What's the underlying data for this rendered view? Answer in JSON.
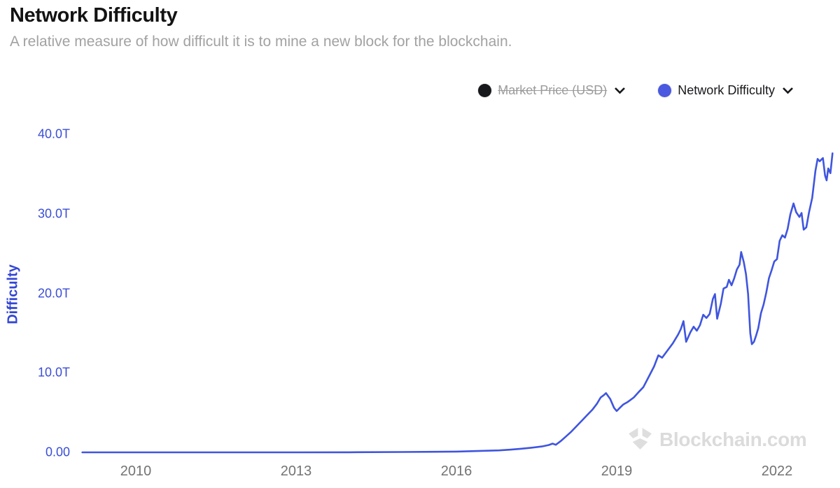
{
  "header": {
    "title": "Network Difficulty",
    "subtitle": "A relative measure of how difficult it is to mine a new block for the blockchain."
  },
  "legend": {
    "items": [
      {
        "label": "Market Price (USD)",
        "color": "#17181b",
        "enabled": false
      },
      {
        "label": "Network Difficulty",
        "color": "#4a59e0",
        "enabled": true
      }
    ]
  },
  "watermark": {
    "text": "Blockchain.com"
  },
  "chart_data": {
    "type": "line",
    "title": "Network Difficulty",
    "xlabel": "",
    "ylabel": "Difficulty",
    "unit": "T = trillions (difficulty)",
    "grid": false,
    "legend_position": "top-right",
    "line_color": "#3f55df",
    "axis_label_color": "#3a4ed6",
    "x_ticks": [
      "2010",
      "2013",
      "2016",
      "2019",
      "2022"
    ],
    "y_ticks": [
      "40.0T",
      "30.0T",
      "20.0T",
      "10.0T",
      "0.00"
    ],
    "xlim": [
      2009,
      2023.1
    ],
    "ylim": [
      0,
      40
    ],
    "series": [
      {
        "name": "Network Difficulty",
        "points": [
          [
            2009.0,
            0.0
          ],
          [
            2010.0,
            0.0
          ],
          [
            2011.0,
            0.0
          ],
          [
            2012.0,
            0.0
          ],
          [
            2013.0,
            0.0
          ],
          [
            2014.0,
            0.01
          ],
          [
            2015.0,
            0.045
          ],
          [
            2015.6,
            0.07
          ],
          [
            2016.0,
            0.1
          ],
          [
            2016.4,
            0.17
          ],
          [
            2016.8,
            0.25
          ],
          [
            2017.0,
            0.33
          ],
          [
            2017.2,
            0.45
          ],
          [
            2017.4,
            0.58
          ],
          [
            2017.6,
            0.74
          ],
          [
            2017.73,
            0.92
          ],
          [
            2017.8,
            1.1
          ],
          [
            2017.86,
            0.95
          ],
          [
            2017.95,
            1.4
          ],
          [
            2018.05,
            2.0
          ],
          [
            2018.15,
            2.6
          ],
          [
            2018.25,
            3.3
          ],
          [
            2018.35,
            4.0
          ],
          [
            2018.45,
            4.7
          ],
          [
            2018.55,
            5.4
          ],
          [
            2018.63,
            6.1
          ],
          [
            2018.7,
            6.9
          ],
          [
            2018.76,
            7.2
          ],
          [
            2018.8,
            7.45
          ],
          [
            2018.88,
            6.7
          ],
          [
            2018.95,
            5.6
          ],
          [
            2019.0,
            5.2
          ],
          [
            2019.06,
            5.6
          ],
          [
            2019.12,
            6.0
          ],
          [
            2019.2,
            6.3
          ],
          [
            2019.26,
            6.6
          ],
          [
            2019.32,
            6.9
          ],
          [
            2019.4,
            7.5
          ],
          [
            2019.5,
            8.2
          ],
          [
            2019.6,
            9.5
          ],
          [
            2019.7,
            10.8
          ],
          [
            2019.78,
            12.2
          ],
          [
            2019.85,
            11.9
          ],
          [
            2019.95,
            12.8
          ],
          [
            2020.05,
            13.7
          ],
          [
            2020.15,
            14.8
          ],
          [
            2020.2,
            15.5
          ],
          [
            2020.25,
            16.5
          ],
          [
            2020.3,
            13.9
          ],
          [
            2020.38,
            15.1
          ],
          [
            2020.44,
            15.8
          ],
          [
            2020.5,
            15.3
          ],
          [
            2020.56,
            16.0
          ],
          [
            2020.62,
            17.3
          ],
          [
            2020.68,
            16.9
          ],
          [
            2020.74,
            17.4
          ],
          [
            2020.8,
            19.3
          ],
          [
            2020.84,
            19.9
          ],
          [
            2020.88,
            16.8
          ],
          [
            2020.95,
            18.7
          ],
          [
            2021.0,
            20.6
          ],
          [
            2021.06,
            20.8
          ],
          [
            2021.1,
            21.7
          ],
          [
            2021.15,
            21.0
          ],
          [
            2021.2,
            21.9
          ],
          [
            2021.25,
            23.0
          ],
          [
            2021.3,
            23.6
          ],
          [
            2021.33,
            25.2
          ],
          [
            2021.38,
            23.9
          ],
          [
            2021.42,
            22.4
          ],
          [
            2021.46,
            19.9
          ],
          [
            2021.5,
            15.0
          ],
          [
            2021.53,
            13.6
          ],
          [
            2021.57,
            13.9
          ],
          [
            2021.61,
            14.7
          ],
          [
            2021.65,
            15.6
          ],
          [
            2021.7,
            17.5
          ],
          [
            2021.75,
            18.6
          ],
          [
            2021.8,
            20.1
          ],
          [
            2021.85,
            21.9
          ],
          [
            2021.9,
            22.9
          ],
          [
            2021.95,
            24.0
          ],
          [
            2022.0,
            24.3
          ],
          [
            2022.05,
            26.6
          ],
          [
            2022.1,
            27.3
          ],
          [
            2022.15,
            27.0
          ],
          [
            2022.2,
            28.1
          ],
          [
            2022.25,
            29.9
          ],
          [
            2022.31,
            31.3
          ],
          [
            2022.36,
            30.2
          ],
          [
            2022.42,
            29.6
          ],
          [
            2022.46,
            30.1
          ],
          [
            2022.5,
            28.0
          ],
          [
            2022.55,
            28.3
          ],
          [
            2022.6,
            30.2
          ],
          [
            2022.66,
            32.0
          ],
          [
            2022.72,
            35.4
          ],
          [
            2022.76,
            36.9
          ],
          [
            2022.8,
            36.6
          ],
          [
            2022.86,
            37.0
          ],
          [
            2022.9,
            34.8
          ],
          [
            2022.93,
            34.2
          ],
          [
            2022.96,
            35.7
          ],
          [
            2023.0,
            35.1
          ],
          [
            2023.04,
            37.6
          ]
        ]
      }
    ]
  }
}
